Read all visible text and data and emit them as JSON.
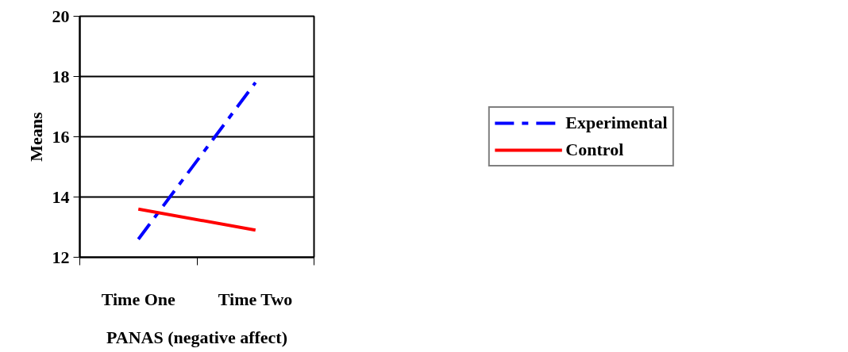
{
  "chart_data": {
    "type": "line",
    "xlabel": "PANAS (negative affect)",
    "ylabel": "Means",
    "categories": [
      "Time One",
      "Time Two"
    ],
    "series": [
      {
        "name": "Experimental",
        "color": "#0000ff",
        "values": [
          12.6,
          17.8
        ],
        "line_style": "dashed"
      },
      {
        "name": "Control",
        "color": "#ff0000",
        "values": [
          13.6,
          12.9
        ],
        "line_style": "solid"
      }
    ],
    "ylim": [
      12,
      20
    ],
    "yticks": [
      12,
      14,
      16,
      18,
      20
    ],
    "grid": "y",
    "legend": "right",
    "marker": "none"
  }
}
